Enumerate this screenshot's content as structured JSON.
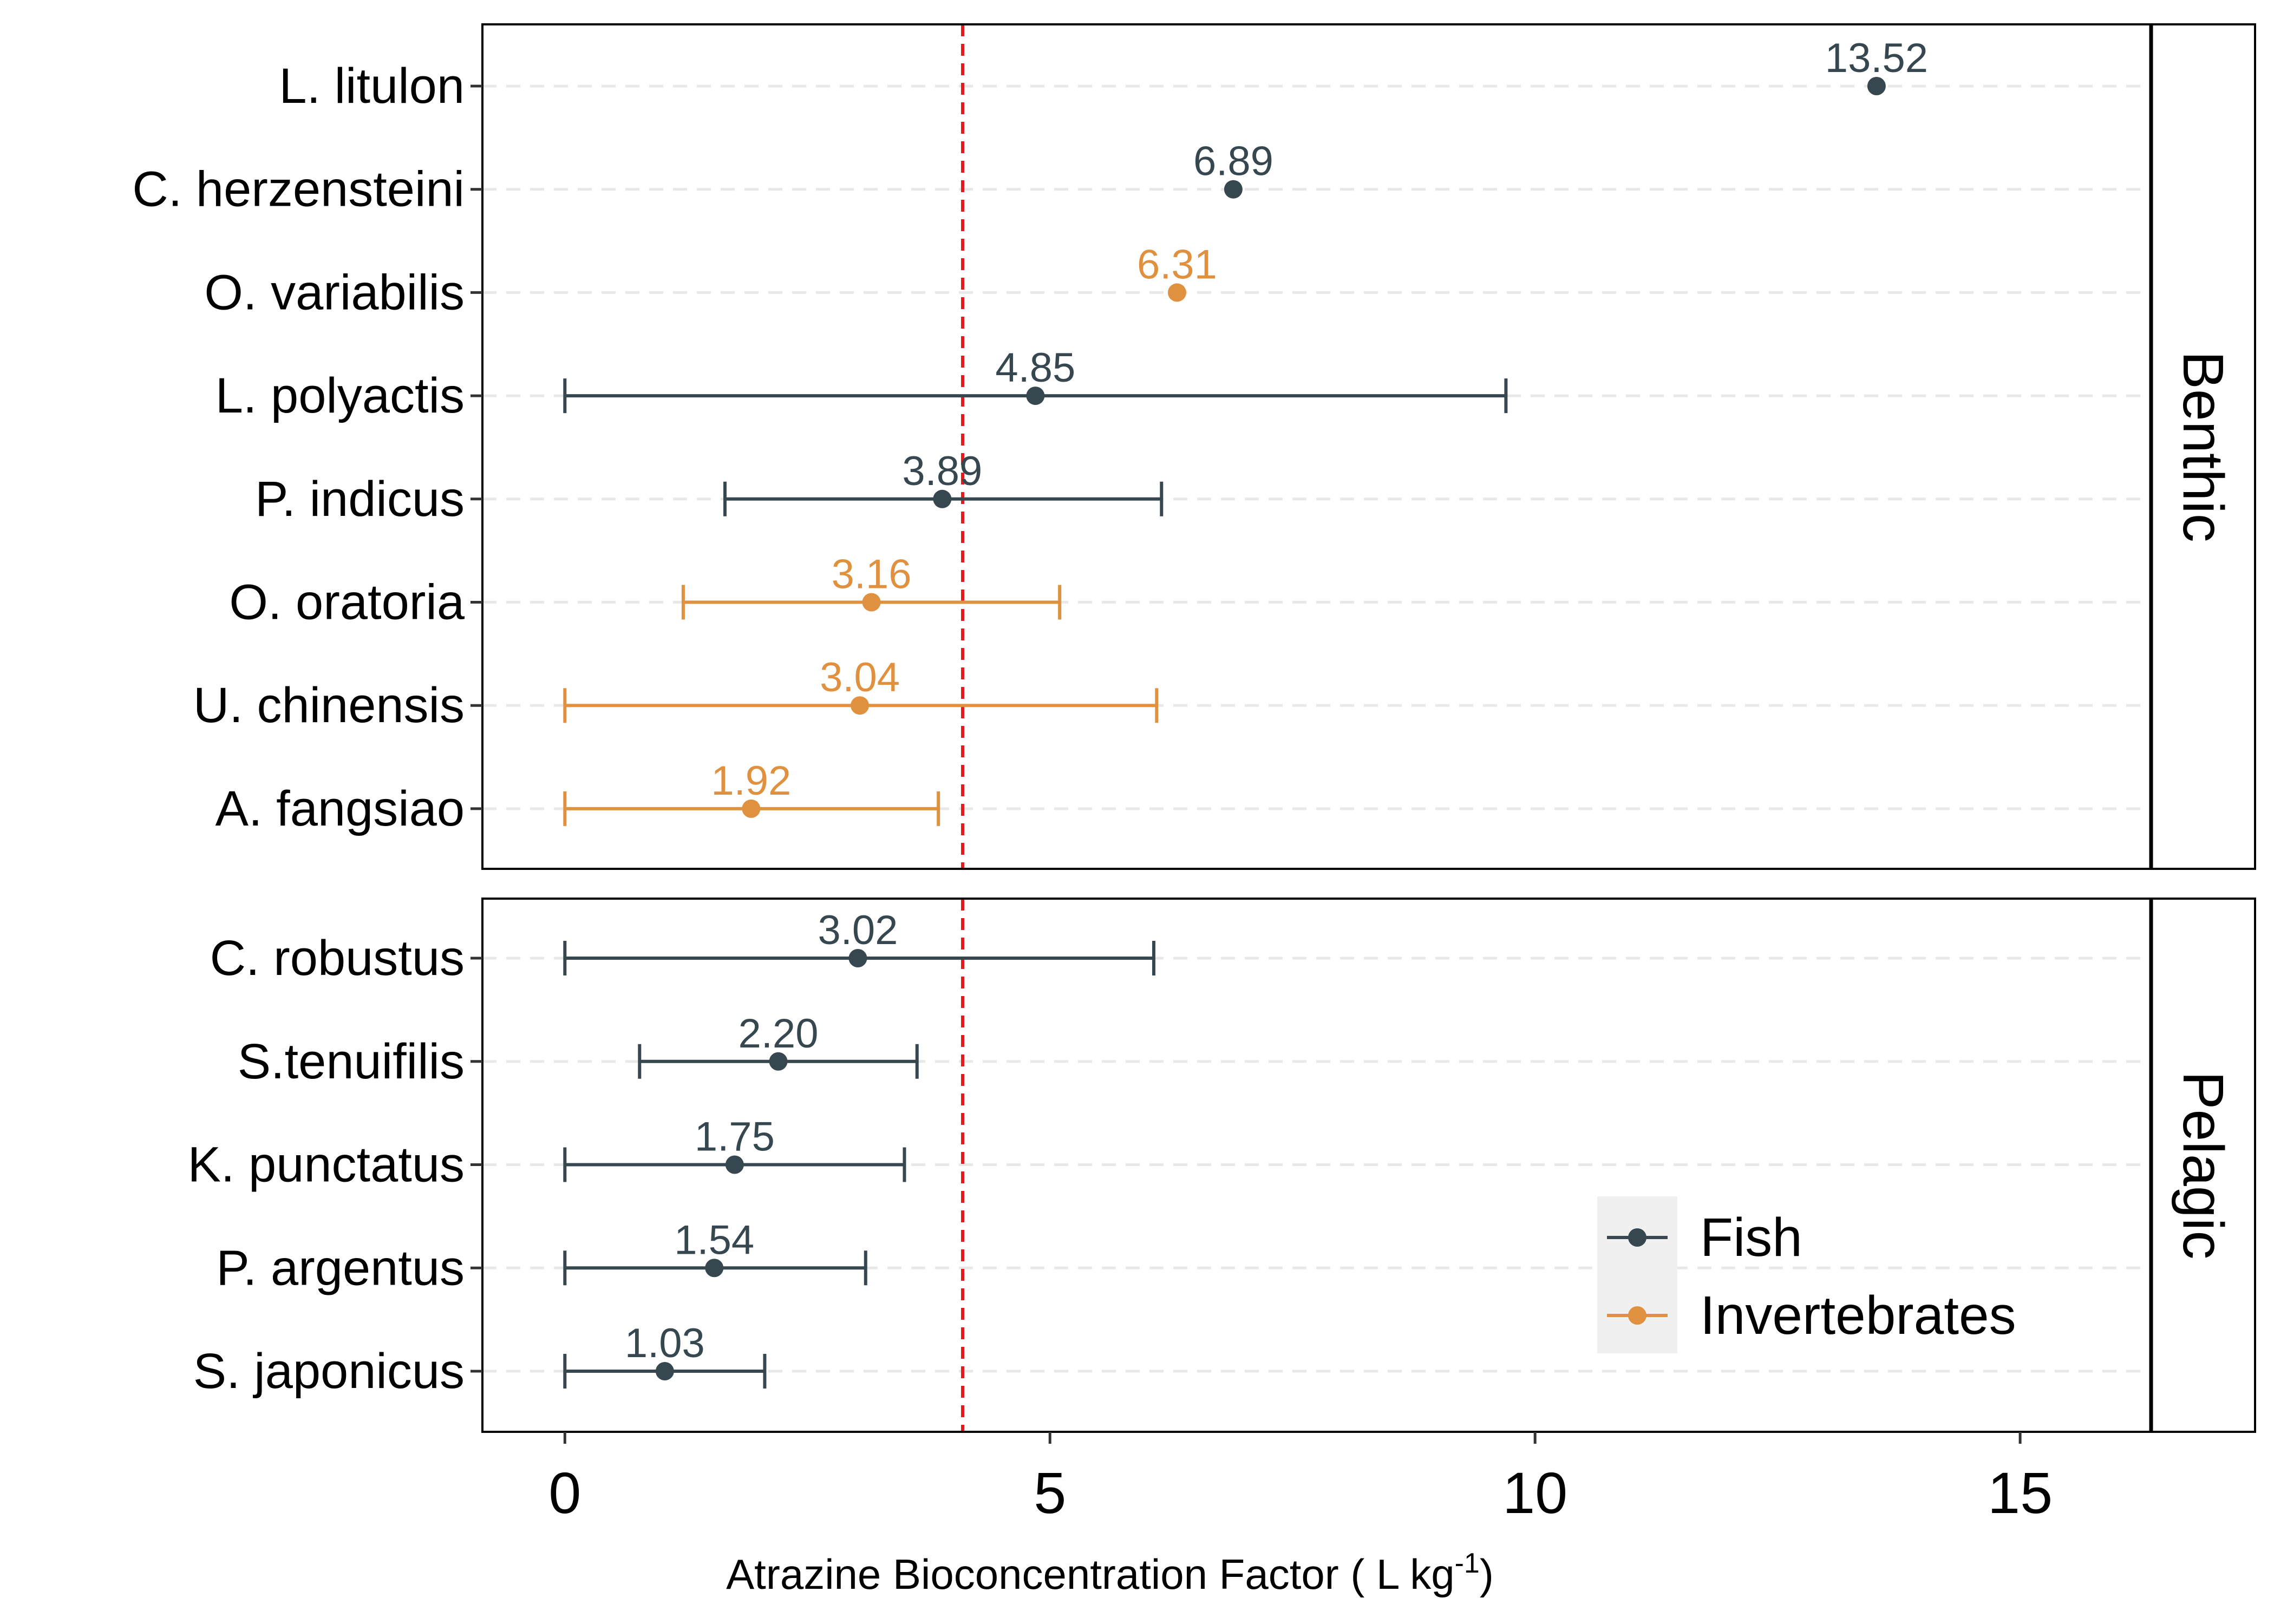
{
  "chart_data": {
    "type": "scatter",
    "xlabel": "Atrazine Bioconcentration Factor",
    "xlabel_unit_prefix": "( L kg",
    "xlabel_unit_exp": "-1",
    "xlabel_unit_suffix": ")",
    "xlim": [
      -0.85,
      16.35
    ],
    "xticks": [
      0,
      5,
      10,
      15
    ],
    "reference_line": {
      "x": 4.1,
      "color": "#e41a1c",
      "style": "dashed"
    },
    "grid": "horizontal dashed",
    "legend_position": "bottom-right",
    "series": [
      {
        "name": "Fish",
        "color": "#37474f"
      },
      {
        "name": "Invertebrates",
        "color": "#e0913f"
      }
    ],
    "panels": [
      {
        "name": "Benthic",
        "rows": [
          {
            "species": "L. litulon",
            "group": "Fish",
            "value": 13.52,
            "label": "13.52",
            "low": null,
            "high": null
          },
          {
            "species": "C. herzensteini",
            "group": "Fish",
            "value": 6.89,
            "label": "6.89",
            "low": null,
            "high": null
          },
          {
            "species": "O. variabilis",
            "group": "Invertebrates",
            "value": 6.31,
            "label": "6.31",
            "low": null,
            "high": null
          },
          {
            "species": "L. polyactis",
            "group": "Fish",
            "value": 4.85,
            "label": "4.85",
            "low": 0,
            "high": 9.7
          },
          {
            "species": "P. indicus",
            "group": "Fish",
            "value": 3.89,
            "label": "3.89",
            "low": 1.65,
            "high": 6.15
          },
          {
            "species": "O. oratoria",
            "group": "Invertebrates",
            "value": 3.16,
            "label": "3.16",
            "low": 1.22,
            "high": 5.1
          },
          {
            "species": "U. chinensis",
            "group": "Invertebrates",
            "value": 3.04,
            "label": "3.04",
            "low": 0,
            "high": 6.1
          },
          {
            "species": "A. fangsiao",
            "group": "Invertebrates",
            "value": 1.92,
            "label": "1.92",
            "low": 0,
            "high": 3.85
          }
        ]
      },
      {
        "name": "Pelagic",
        "rows": [
          {
            "species": "C. robustus",
            "group": "Fish",
            "value": 3.02,
            "label": "3.02",
            "low": 0,
            "high": 6.07
          },
          {
            "species": "S.tenuifilis",
            "group": "Fish",
            "value": 2.2,
            "label": "2.20",
            "low": 0.77,
            "high": 3.63
          },
          {
            "species": "K. punctatus",
            "group": "Fish",
            "value": 1.75,
            "label": "1.75",
            "low": 0,
            "high": 3.5
          },
          {
            "species": "P. argentus",
            "group": "Fish",
            "value": 1.54,
            "label": "1.54",
            "low": 0,
            "high": 3.1
          },
          {
            "species": "S. japonicus",
            "group": "Fish",
            "value": 1.03,
            "label": "1.03",
            "low": 0,
            "high": 2.06
          }
        ]
      }
    ]
  }
}
